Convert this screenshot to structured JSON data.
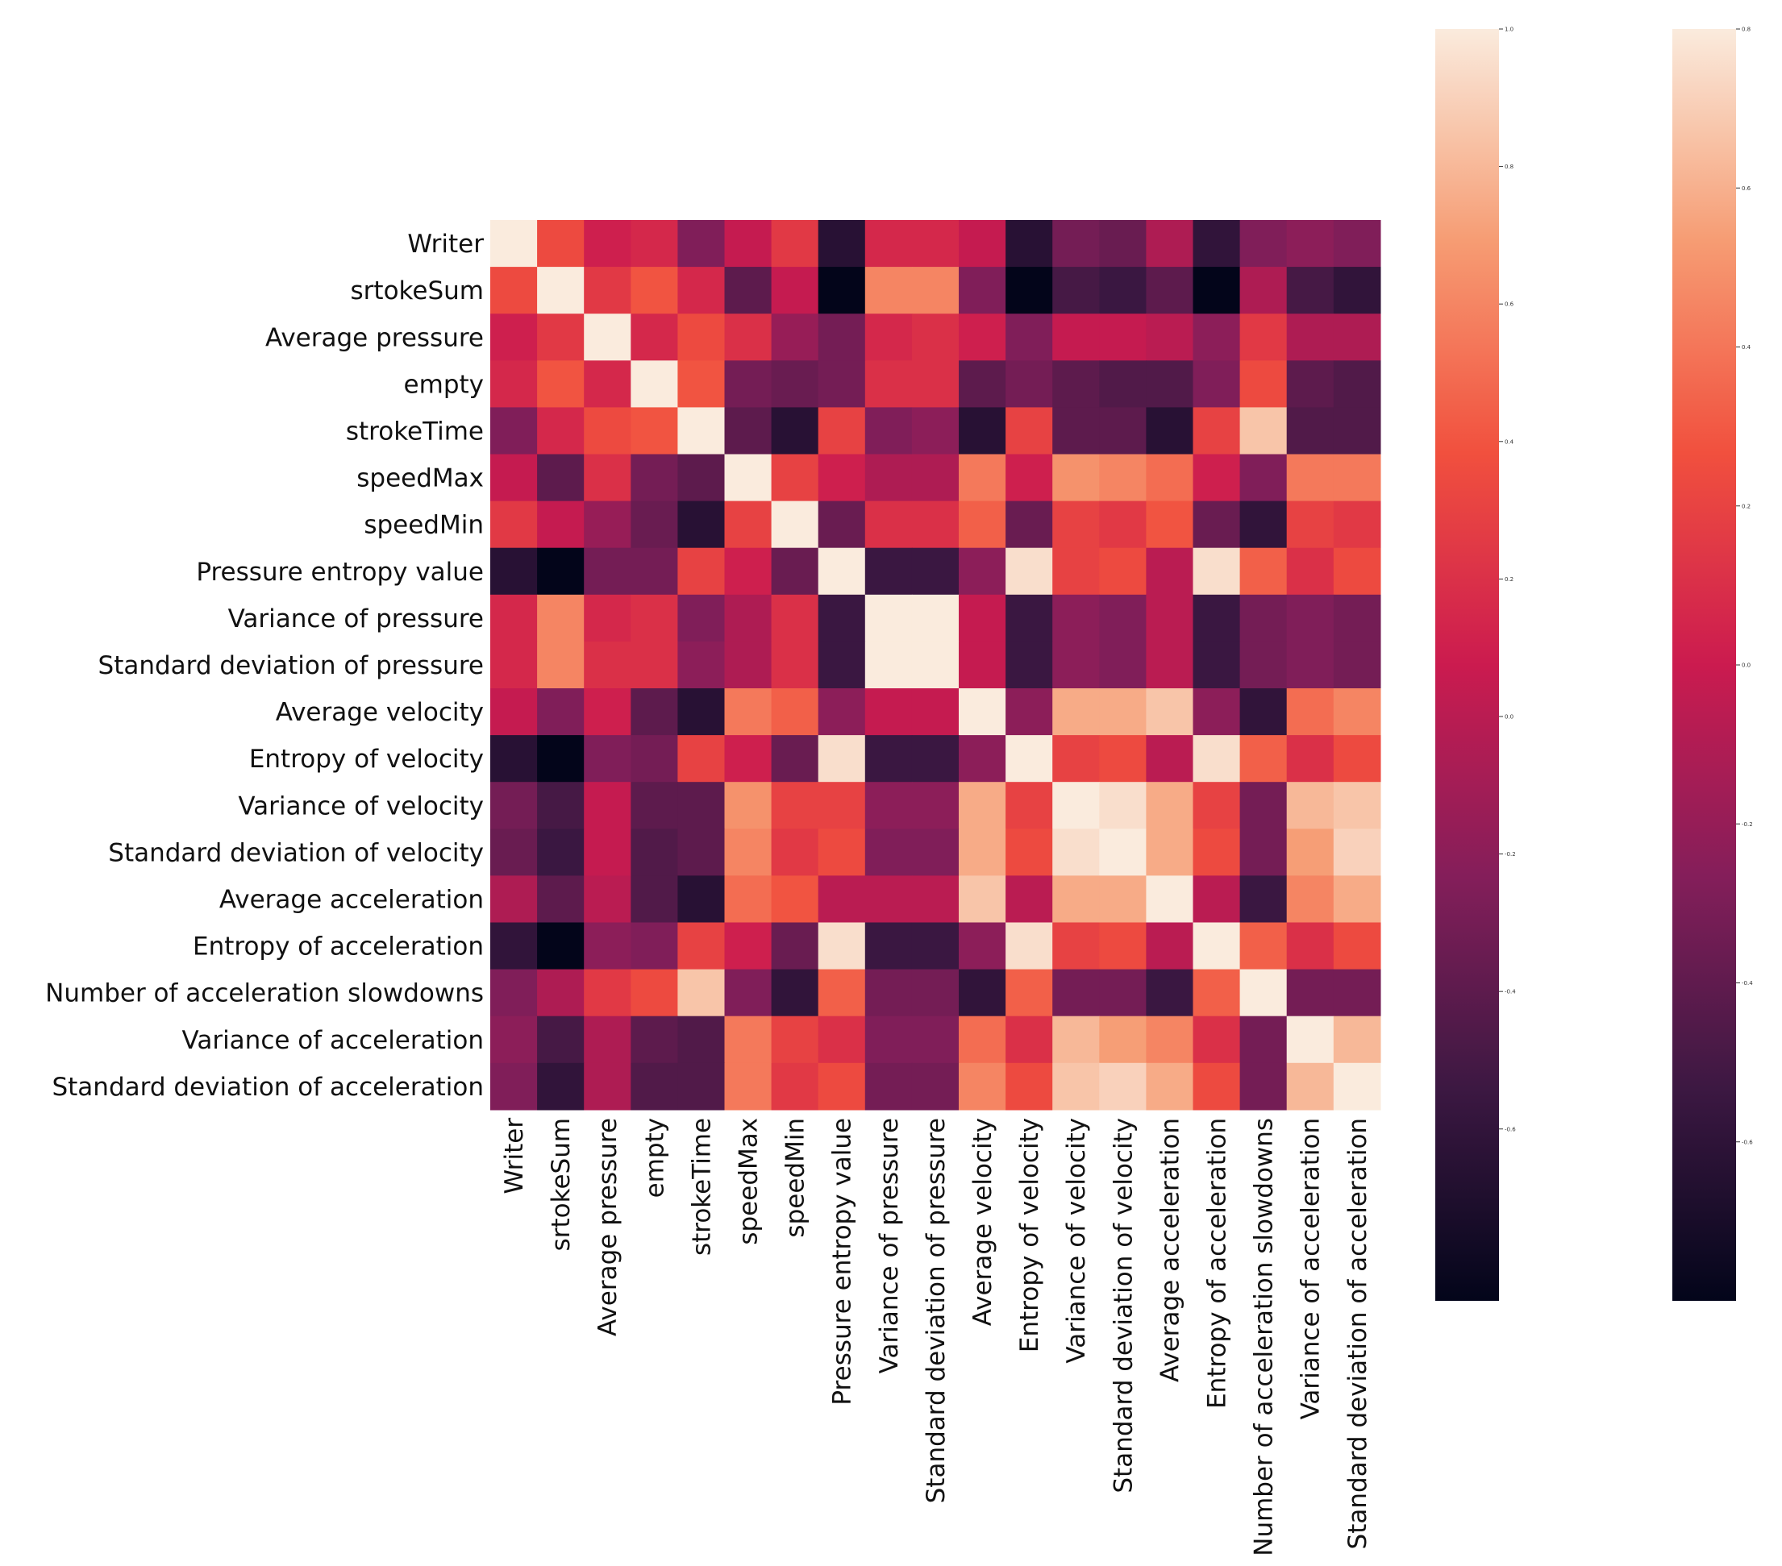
{
  "chart_data": {
    "type": "heatmap",
    "title": "",
    "xlabel": "",
    "ylabel": "",
    "labels": [
      "Writer",
      "srtokeSum",
      "Average pressure",
      "empty",
      "strokeTime",
      "speedMax",
      "speedMin",
      "Pressure entropy value",
      "Variance of pressure",
      "Standard deviation of pressure",
      "Average velocity",
      "Entropy of velocity",
      "Variance of velocity",
      "Standard deviation of velocity",
      "Average acceleration",
      "Entropy of acceleration",
      "Number of acceleration slowdowns",
      "Variance of acceleration",
      "Standard deviation of acceleration"
    ],
    "matrix": [
      [
        1.0,
        0.35,
        0.1,
        0.15,
        -0.25,
        0.05,
        0.25,
        -0.65,
        0.15,
        0.15,
        0.05,
        -0.65,
        -0.3,
        -0.35,
        -0.05,
        -0.6,
        -0.25,
        -0.2,
        -0.25
      ],
      [
        0.35,
        1.0,
        0.25,
        0.4,
        0.15,
        -0.4,
        0.05,
        -0.85,
        0.6,
        0.6,
        -0.25,
        -0.85,
        -0.5,
        -0.55,
        -0.4,
        -0.85,
        -0.05,
        -0.5,
        -0.6
      ],
      [
        0.1,
        0.25,
        1.0,
        0.15,
        0.35,
        0.2,
        -0.15,
        -0.3,
        0.15,
        0.2,
        0.1,
        -0.25,
        0.05,
        0.05,
        0.0,
        -0.2,
        0.25,
        -0.05,
        -0.05
      ],
      [
        0.15,
        0.4,
        0.15,
        1.0,
        0.4,
        -0.3,
        -0.35,
        -0.3,
        0.2,
        0.2,
        -0.4,
        -0.3,
        -0.4,
        -0.45,
        -0.45,
        -0.25,
        0.35,
        -0.4,
        -0.45
      ],
      [
        -0.25,
        0.15,
        0.35,
        0.4,
        1.0,
        -0.4,
        -0.65,
        0.3,
        -0.25,
        -0.2,
        -0.65,
        0.3,
        -0.4,
        -0.4,
        -0.65,
        0.3,
        0.85,
        -0.45,
        -0.45
      ],
      [
        0.05,
        -0.4,
        0.2,
        -0.3,
        -0.4,
        1.0,
        0.3,
        0.1,
        -0.05,
        -0.05,
        0.55,
        0.1,
        0.65,
        0.6,
        0.5,
        0.1,
        -0.25,
        0.55,
        0.55
      ],
      [
        0.25,
        0.05,
        -0.15,
        -0.35,
        -0.65,
        0.3,
        1.0,
        -0.35,
        0.2,
        0.2,
        0.45,
        -0.35,
        0.3,
        0.25,
        0.4,
        -0.35,
        -0.6,
        0.3,
        0.25
      ],
      [
        -0.65,
        -0.85,
        -0.3,
        -0.3,
        0.3,
        0.1,
        -0.35,
        1.0,
        -0.55,
        -0.55,
        -0.2,
        0.95,
        0.3,
        0.35,
        0.0,
        0.95,
        0.45,
        0.2,
        0.35
      ],
      [
        0.15,
        0.6,
        0.15,
        0.2,
        -0.25,
        -0.05,
        0.2,
        -0.55,
        1.0,
        1.0,
        0.05,
        -0.55,
        -0.2,
        -0.25,
        0.0,
        -0.55,
        -0.3,
        -0.25,
        -0.3
      ],
      [
        0.15,
        0.6,
        0.2,
        0.2,
        -0.2,
        -0.05,
        0.2,
        -0.55,
        1.0,
        1.0,
        0.05,
        -0.55,
        -0.2,
        -0.25,
        0.0,
        -0.55,
        -0.3,
        -0.25,
        -0.3
      ],
      [
        0.05,
        -0.25,
        0.1,
        -0.4,
        -0.65,
        0.55,
        0.45,
        -0.2,
        0.05,
        0.05,
        1.0,
        -0.2,
        0.75,
        0.75,
        0.85,
        -0.2,
        -0.6,
        0.5,
        0.6
      ],
      [
        -0.65,
        -0.85,
        -0.25,
        -0.3,
        0.3,
        0.1,
        -0.35,
        0.95,
        -0.55,
        -0.55,
        -0.2,
        1.0,
        0.3,
        0.35,
        0.0,
        0.95,
        0.45,
        0.2,
        0.35
      ],
      [
        -0.3,
        -0.5,
        0.05,
        -0.4,
        -0.4,
        0.65,
        0.3,
        0.3,
        -0.2,
        -0.2,
        0.75,
        0.3,
        1.0,
        0.95,
        0.75,
        0.3,
        -0.3,
        0.8,
        0.85
      ],
      [
        -0.35,
        -0.55,
        0.05,
        -0.45,
        -0.4,
        0.6,
        0.25,
        0.35,
        -0.25,
        -0.25,
        0.75,
        0.35,
        0.95,
        1.0,
        0.75,
        0.35,
        -0.3,
        0.7,
        0.9
      ],
      [
        -0.05,
        -0.4,
        0.0,
        -0.45,
        -0.65,
        0.5,
        0.4,
        0.0,
        0.0,
        0.0,
        0.85,
        0.0,
        0.75,
        0.75,
        1.0,
        0.0,
        -0.55,
        0.6,
        0.75
      ],
      [
        -0.6,
        -0.85,
        -0.2,
        -0.25,
        0.3,
        0.1,
        -0.35,
        0.95,
        -0.55,
        -0.55,
        -0.2,
        0.95,
        0.3,
        0.35,
        0.0,
        1.0,
        0.45,
        0.2,
        0.35
      ],
      [
        -0.25,
        -0.05,
        0.25,
        0.35,
        0.85,
        -0.25,
        -0.6,
        0.45,
        -0.3,
        -0.3,
        -0.6,
        0.45,
        -0.3,
        -0.3,
        -0.55,
        0.45,
        1.0,
        -0.3,
        -0.3
      ],
      [
        -0.2,
        -0.5,
        -0.05,
        -0.4,
        -0.45,
        0.55,
        0.3,
        0.2,
        -0.25,
        -0.25,
        0.5,
        0.2,
        0.8,
        0.7,
        0.6,
        0.2,
        -0.3,
        1.0,
        0.8
      ],
      [
        -0.25,
        -0.6,
        -0.05,
        -0.45,
        -0.45,
        0.55,
        0.25,
        0.35,
        -0.3,
        -0.3,
        0.6,
        0.35,
        0.85,
        0.9,
        0.75,
        0.35,
        -0.3,
        0.8,
        1.0
      ]
    ],
    "color_range": [
      -0.85,
      1.0
    ],
    "colormap": "rocket",
    "colormap_stops": [
      "#03051a",
      "#3c1842",
      "#841e5a",
      "#cb1b4f",
      "#f1503e",
      "#f69c73",
      "#faebdd"
    ],
    "colorbars": [
      {
        "range": [
          -0.85,
          1.0
        ],
        "ticks": [
          -0.6,
          -0.4,
          -0.2,
          0.0,
          0.2,
          0.4,
          0.6,
          0.8,
          1.0
        ],
        "tick_labels": [
          "-0.6",
          "-0.4",
          "-0.2",
          "0.0",
          "0.2",
          "0.4",
          "0.6",
          "0.8",
          "1.0"
        ]
      },
      {
        "range": [
          -0.8,
          0.8
        ],
        "ticks": [
          -0.6,
          -0.4,
          -0.2,
          0.0,
          0.2,
          0.4,
          0.6,
          0.8
        ],
        "tick_labels": [
          "-0.6",
          "-0.4",
          "-0.2",
          "0.0",
          "0.2",
          "0.4",
          "0.6",
          "0.8"
        ]
      }
    ]
  }
}
